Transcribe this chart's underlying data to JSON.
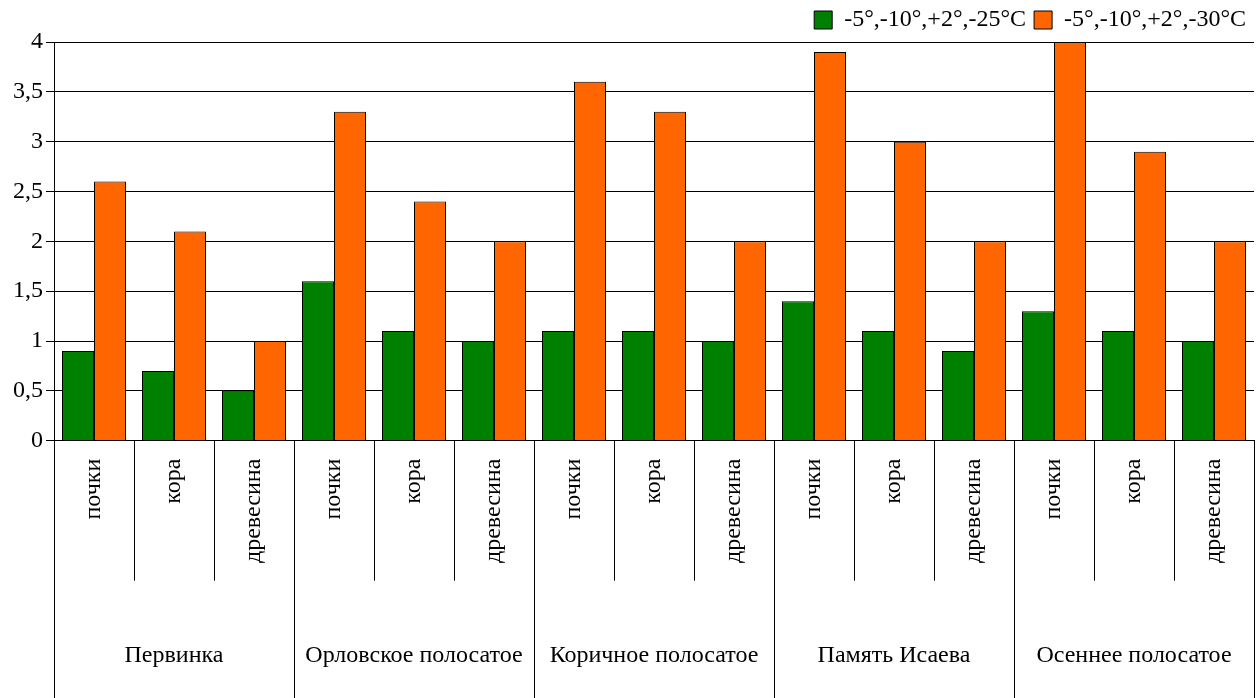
{
  "chart_data": {
    "type": "bar",
    "categories": [
      "почки",
      "кора",
      "древесина",
      "почки",
      "кора",
      "древесина",
      "почки",
      "кора",
      "древесина",
      "почки",
      "кора",
      "древесина",
      "почки",
      "кора",
      "древесина"
    ],
    "series": [
      {
        "name": "-5°,-10°,+2°,-25°C",
        "color": "#008000",
        "values": [
          0.9,
          0.7,
          0.5,
          1.6,
          1.1,
          1.0,
          1.1,
          1.1,
          1.0,
          1.4,
          1.1,
          0.9,
          1.3,
          1.1,
          1.0
        ]
      },
      {
        "name": "-5°,-10°,+2°,-30°C",
        "color": "#ff6600",
        "values": [
          2.6,
          2.1,
          1.0,
          3.3,
          2.4,
          2.0,
          3.6,
          3.3,
          2.0,
          3.9,
          3.0,
          2.0,
          4.0,
          2.9,
          2.0
        ]
      }
    ],
    "annotations": [
      "Первинка",
      "Орловское полосатое",
      "Коричное полосатое",
      "Память Исаева",
      "Осеннее полосатое"
    ],
    "ylim": [
      0,
      4
    ],
    "yticks": [
      0,
      {
        "value": 0.5,
        "label": "0,5"
      },
      1,
      {
        "value": 1.5,
        "label": "1,5"
      },
      2,
      {
        "value": 2.5,
        "label": "2,5"
      },
      3,
      {
        "value": 3.5,
        "label": "3,5"
      },
      4
    ],
    "grid": "y",
    "legend": "top right"
  }
}
